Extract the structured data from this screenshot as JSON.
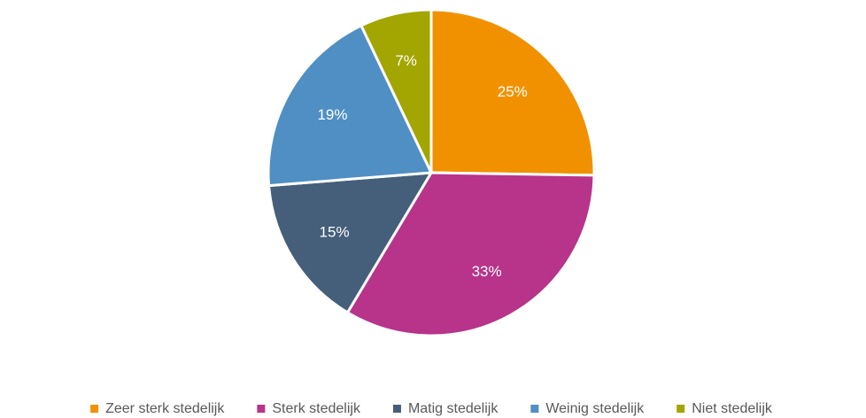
{
  "chart_data": {
    "type": "pie",
    "categories": [
      "Zeer sterk stedelijk",
      "Sterk stedelijk",
      "Matig stedelijk",
      "Weinig stedelijk",
      "Niet stedelijk"
    ],
    "values": [
      25,
      33,
      15,
      19,
      7
    ],
    "value_labels": [
      "25%",
      "33%",
      "15%",
      "19%",
      "7%"
    ],
    "colors": [
      "#f29100",
      "#b8338a",
      "#455f7a",
      "#4f8fc4",
      "#a3a500"
    ],
    "legend": "bottom"
  }
}
